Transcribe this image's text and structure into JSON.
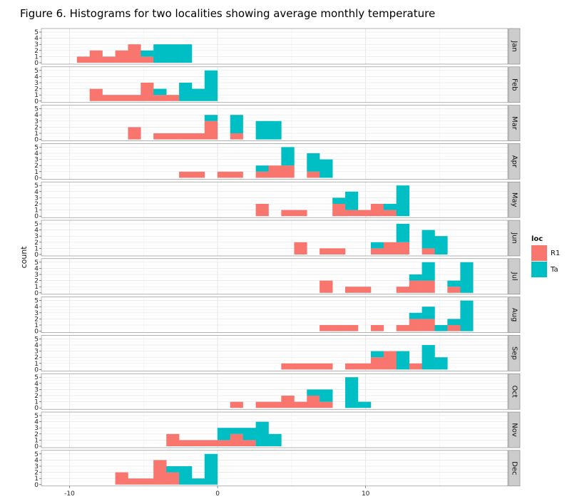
{
  "figure_title": "Figure 6. Histograms for two localities showing average monthly temperature",
  "chart_data": {
    "type": "bar",
    "subtype": "stacked-histogram-faceted",
    "ylabel": "count",
    "xlabel": "",
    "xlim": [
      -11.9,
      19.6
    ],
    "ylim": [
      0,
      5
    ],
    "x_ticks": [
      -10,
      0,
      10
    ],
    "y_ticks": [
      0,
      1,
      2,
      3,
      4,
      5
    ],
    "bin_width": 0.862,
    "grid": true,
    "legend": {
      "title": "loc",
      "position": "right",
      "entries": [
        {
          "name": "R1",
          "color": "#F8766D"
        },
        {
          "name": "Ta",
          "color": "#00BFC4"
        }
      ]
    },
    "series": [
      {
        "name": "R1",
        "color": "#F8766D"
      },
      {
        "name": "Ta",
        "color": "#00BFC4"
      }
    ],
    "facets": [
      {
        "label": "Jan",
        "bins": [
          {
            "x0": -9.5,
            "x1": -8.64,
            "R1": 1,
            "Ta": 0
          },
          {
            "x0": -8.64,
            "x1": -7.78,
            "R1": 2,
            "Ta": 0
          },
          {
            "x0": -7.78,
            "x1": -6.91,
            "R1": 1,
            "Ta": 0
          },
          {
            "x0": -6.91,
            "x1": -6.05,
            "R1": 2,
            "Ta": 0
          },
          {
            "x0": -6.05,
            "x1": -5.19,
            "R1": 3,
            "Ta": 0
          },
          {
            "x0": -5.19,
            "x1": -4.33,
            "R1": 1,
            "Ta": 1
          },
          {
            "x0": -4.33,
            "x1": -3.46,
            "R1": 0,
            "Ta": 3
          },
          {
            "x0": -3.46,
            "x1": -2.6,
            "R1": 0,
            "Ta": 3
          },
          {
            "x0": -2.6,
            "x1": -1.74,
            "R1": 0,
            "Ta": 3
          }
        ]
      },
      {
        "label": "Feb",
        "bins": [
          {
            "x0": -8.64,
            "x1": -7.78,
            "R1": 2,
            "Ta": 0
          },
          {
            "x0": -7.78,
            "x1": -6.91,
            "R1": 1,
            "Ta": 0
          },
          {
            "x0": -6.91,
            "x1": -6.05,
            "R1": 1,
            "Ta": 0
          },
          {
            "x0": -6.05,
            "x1": -5.19,
            "R1": 1,
            "Ta": 0
          },
          {
            "x0": -5.19,
            "x1": -4.33,
            "R1": 3,
            "Ta": 0
          },
          {
            "x0": -4.33,
            "x1": -3.46,
            "R1": 1,
            "Ta": 1
          },
          {
            "x0": -3.46,
            "x1": -2.6,
            "R1": 1,
            "Ta": 0
          },
          {
            "x0": -2.6,
            "x1": -1.74,
            "R1": 0,
            "Ta": 3
          },
          {
            "x0": -1.74,
            "x1": -0.88,
            "R1": 0,
            "Ta": 2
          },
          {
            "x0": -0.88,
            "x1": -0.01,
            "R1": 0,
            "Ta": 5
          }
        ]
      },
      {
        "label": "Mar",
        "bins": [
          {
            "x0": -6.05,
            "x1": -5.19,
            "R1": 2,
            "Ta": 0
          },
          {
            "x0": -4.33,
            "x1": -3.46,
            "R1": 1,
            "Ta": 0
          },
          {
            "x0": -3.46,
            "x1": -2.6,
            "R1": 1,
            "Ta": 0
          },
          {
            "x0": -2.6,
            "x1": -1.74,
            "R1": 1,
            "Ta": 0
          },
          {
            "x0": -1.74,
            "x1": -0.88,
            "R1": 1,
            "Ta": 0
          },
          {
            "x0": -0.88,
            "x1": -0.01,
            "R1": 3,
            "Ta": 1
          },
          {
            "x0": 0.85,
            "x1": 1.71,
            "R1": 1,
            "Ta": 3
          },
          {
            "x0": 2.58,
            "x1": 3.44,
            "R1": 0,
            "Ta": 3
          },
          {
            "x0": 3.44,
            "x1": 4.3,
            "R1": 0,
            "Ta": 3
          }
        ]
      },
      {
        "label": "Apr",
        "bins": [
          {
            "x0": -2.6,
            "x1": -1.74,
            "R1": 1,
            "Ta": 0
          },
          {
            "x0": -1.74,
            "x1": -0.88,
            "R1": 1,
            "Ta": 0
          },
          {
            "x0": -0.01,
            "x1": 0.85,
            "R1": 1,
            "Ta": 0
          },
          {
            "x0": 0.85,
            "x1": 1.71,
            "R1": 1,
            "Ta": 0
          },
          {
            "x0": 2.58,
            "x1": 3.44,
            "R1": 1,
            "Ta": 1
          },
          {
            "x0": 3.44,
            "x1": 4.3,
            "R1": 2,
            "Ta": 0
          },
          {
            "x0": 4.3,
            "x1": 5.17,
            "R1": 2,
            "Ta": 3
          },
          {
            "x0": 6.03,
            "x1": 6.89,
            "R1": 1,
            "Ta": 3
          },
          {
            "x0": 6.89,
            "x1": 7.76,
            "R1": 0,
            "Ta": 3
          }
        ]
      },
      {
        "label": "May",
        "bins": [
          {
            "x0": 2.58,
            "x1": 3.44,
            "R1": 2,
            "Ta": 0
          },
          {
            "x0": 4.3,
            "x1": 5.17,
            "R1": 1,
            "Ta": 0
          },
          {
            "x0": 5.17,
            "x1": 6.03,
            "R1": 1,
            "Ta": 0
          },
          {
            "x0": 7.76,
            "x1": 8.62,
            "R1": 2,
            "Ta": 1
          },
          {
            "x0": 8.62,
            "x1": 9.48,
            "R1": 1,
            "Ta": 3
          },
          {
            "x0": 9.48,
            "x1": 10.35,
            "R1": 1,
            "Ta": 0
          },
          {
            "x0": 10.35,
            "x1": 11.21,
            "R1": 2,
            "Ta": 0
          },
          {
            "x0": 11.21,
            "x1": 12.07,
            "R1": 1,
            "Ta": 1
          },
          {
            "x0": 12.07,
            "x1": 12.94,
            "R1": 0,
            "Ta": 5
          }
        ]
      },
      {
        "label": "Jun",
        "bins": [
          {
            "x0": 5.17,
            "x1": 6.03,
            "R1": 2,
            "Ta": 0
          },
          {
            "x0": 6.89,
            "x1": 7.76,
            "R1": 1,
            "Ta": 0
          },
          {
            "x0": 7.76,
            "x1": 8.62,
            "R1": 1,
            "Ta": 0
          },
          {
            "x0": 10.35,
            "x1": 11.21,
            "R1": 1,
            "Ta": 1
          },
          {
            "x0": 11.21,
            "x1": 12.07,
            "R1": 2,
            "Ta": 0
          },
          {
            "x0": 12.07,
            "x1": 12.94,
            "R1": 2,
            "Ta": 3
          },
          {
            "x0": 13.8,
            "x1": 14.66,
            "R1": 1,
            "Ta": 3
          },
          {
            "x0": 14.66,
            "x1": 15.52,
            "R1": 0,
            "Ta": 3
          }
        ]
      },
      {
        "label": "Jul",
        "bins": [
          {
            "x0": 6.89,
            "x1": 7.76,
            "R1": 2,
            "Ta": 0
          },
          {
            "x0": 8.62,
            "x1": 9.48,
            "R1": 1,
            "Ta": 0
          },
          {
            "x0": 9.48,
            "x1": 10.35,
            "R1": 1,
            "Ta": 0
          },
          {
            "x0": 12.07,
            "x1": 12.94,
            "R1": 1,
            "Ta": 0
          },
          {
            "x0": 12.94,
            "x1": 13.8,
            "R1": 2,
            "Ta": 1
          },
          {
            "x0": 13.8,
            "x1": 14.66,
            "R1": 2,
            "Ta": 3
          },
          {
            "x0": 15.52,
            "x1": 16.39,
            "R1": 1,
            "Ta": 1
          },
          {
            "x0": 16.39,
            "x1": 17.25,
            "R1": 0,
            "Ta": 5
          }
        ]
      },
      {
        "label": "Aug",
        "bins": [
          {
            "x0": 6.89,
            "x1": 7.76,
            "R1": 1,
            "Ta": 0
          },
          {
            "x0": 7.76,
            "x1": 8.62,
            "R1": 1,
            "Ta": 0
          },
          {
            "x0": 8.62,
            "x1": 9.48,
            "R1": 1,
            "Ta": 0
          },
          {
            "x0": 10.35,
            "x1": 11.21,
            "R1": 1,
            "Ta": 0
          },
          {
            "x0": 12.07,
            "x1": 12.94,
            "R1": 1,
            "Ta": 0
          },
          {
            "x0": 12.94,
            "x1": 13.8,
            "R1": 2,
            "Ta": 1
          },
          {
            "x0": 13.8,
            "x1": 14.66,
            "R1": 2,
            "Ta": 2
          },
          {
            "x0": 14.66,
            "x1": 15.52,
            "R1": 0,
            "Ta": 1
          },
          {
            "x0": 15.52,
            "x1": 16.39,
            "R1": 1,
            "Ta": 1
          },
          {
            "x0": 16.39,
            "x1": 17.25,
            "R1": 0,
            "Ta": 5
          }
        ]
      },
      {
        "label": "Sep",
        "bins": [
          {
            "x0": 4.3,
            "x1": 5.17,
            "R1": 1,
            "Ta": 0
          },
          {
            "x0": 5.17,
            "x1": 6.03,
            "R1": 1,
            "Ta": 0
          },
          {
            "x0": 6.03,
            "x1": 6.89,
            "R1": 1,
            "Ta": 0
          },
          {
            "x0": 6.89,
            "x1": 7.76,
            "R1": 1,
            "Ta": 0
          },
          {
            "x0": 8.62,
            "x1": 9.48,
            "R1": 1,
            "Ta": 0
          },
          {
            "x0": 9.48,
            "x1": 10.35,
            "R1": 1,
            "Ta": 0
          },
          {
            "x0": 10.35,
            "x1": 11.21,
            "R1": 2,
            "Ta": 1
          },
          {
            "x0": 11.21,
            "x1": 12.07,
            "R1": 3,
            "Ta": 0
          },
          {
            "x0": 12.07,
            "x1": 12.94,
            "R1": 0,
            "Ta": 3
          },
          {
            "x0": 12.94,
            "x1": 13.8,
            "R1": 1,
            "Ta": 0
          },
          {
            "x0": 13.8,
            "x1": 14.66,
            "R1": 0,
            "Ta": 4
          },
          {
            "x0": 14.66,
            "x1": 15.52,
            "R1": 0,
            "Ta": 2
          }
        ]
      },
      {
        "label": "Oct",
        "bins": [
          {
            "x0": 0.85,
            "x1": 1.71,
            "R1": 1,
            "Ta": 0
          },
          {
            "x0": 2.58,
            "x1": 3.44,
            "R1": 1,
            "Ta": 0
          },
          {
            "x0": 3.44,
            "x1": 4.3,
            "R1": 1,
            "Ta": 0
          },
          {
            "x0": 4.3,
            "x1": 5.17,
            "R1": 2,
            "Ta": 0
          },
          {
            "x0": 5.17,
            "x1": 6.03,
            "R1": 1,
            "Ta": 0
          },
          {
            "x0": 6.03,
            "x1": 6.89,
            "R1": 2,
            "Ta": 1
          },
          {
            "x0": 6.89,
            "x1": 7.76,
            "R1": 1,
            "Ta": 2
          },
          {
            "x0": 8.62,
            "x1": 9.48,
            "R1": 0,
            "Ta": 5
          },
          {
            "x0": 9.48,
            "x1": 10.35,
            "R1": 0,
            "Ta": 1
          }
        ]
      },
      {
        "label": "Nov",
        "bins": [
          {
            "x0": -3.46,
            "x1": -2.6,
            "R1": 2,
            "Ta": 0
          },
          {
            "x0": -2.6,
            "x1": -1.74,
            "R1": 1,
            "Ta": 0
          },
          {
            "x0": -1.74,
            "x1": -0.88,
            "R1": 1,
            "Ta": 0
          },
          {
            "x0": -0.88,
            "x1": -0.01,
            "R1": 1,
            "Ta": 0
          },
          {
            "x0": -0.01,
            "x1": 0.85,
            "R1": 1,
            "Ta": 2
          },
          {
            "x0": 0.85,
            "x1": 1.71,
            "R1": 2,
            "Ta": 1
          },
          {
            "x0": 1.71,
            "x1": 2.58,
            "R1": 1,
            "Ta": 2
          },
          {
            "x0": 2.58,
            "x1": 3.44,
            "R1": 0,
            "Ta": 4
          },
          {
            "x0": 3.44,
            "x1": 4.3,
            "R1": 0,
            "Ta": 2
          }
        ]
      },
      {
        "label": "Dec",
        "bins": [
          {
            "x0": -6.91,
            "x1": -6.05,
            "R1": 2,
            "Ta": 0
          },
          {
            "x0": -6.05,
            "x1": -5.19,
            "R1": 1,
            "Ta": 0
          },
          {
            "x0": -5.19,
            "x1": -4.33,
            "R1": 1,
            "Ta": 0
          },
          {
            "x0": -4.33,
            "x1": -3.46,
            "R1": 4,
            "Ta": 0
          },
          {
            "x0": -3.46,
            "x1": -2.6,
            "R1": 2,
            "Ta": 1
          },
          {
            "x0": -2.6,
            "x1": -1.74,
            "R1": 0,
            "Ta": 3
          },
          {
            "x0": -1.74,
            "x1": -0.88,
            "R1": 0,
            "Ta": 1
          },
          {
            "x0": -0.88,
            "x1": -0.01,
            "R1": 0,
            "Ta": 5
          }
        ]
      }
    ]
  }
}
